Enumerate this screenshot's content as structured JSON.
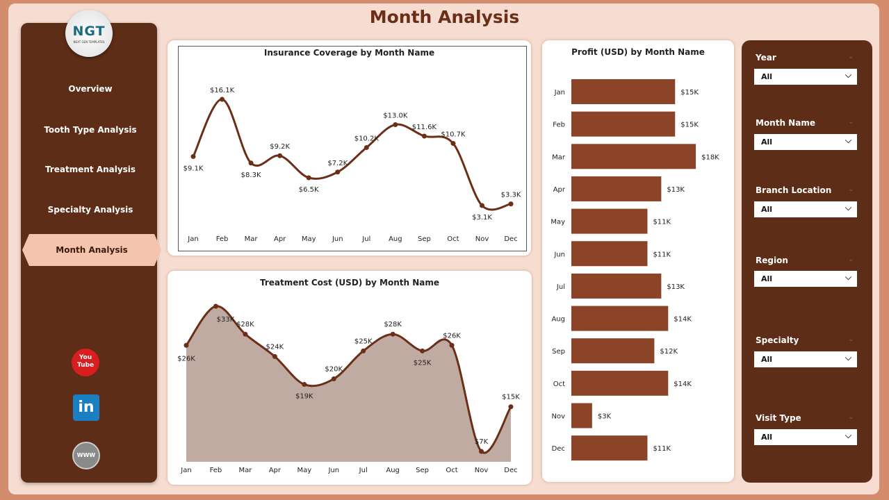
{
  "title": "Month Analysis",
  "logo": {
    "text": "NGT",
    "subtext": "NEXT GEN TEMPLATES"
  },
  "nav": [
    {
      "label": "Overview"
    },
    {
      "label": "Tooth Type Analysis"
    },
    {
      "label": "Treatment Analysis"
    },
    {
      "label": "Specialty Analysis"
    },
    {
      "label": "Month Analysis",
      "active": true
    }
  ],
  "social": [
    {
      "icon": "youtube-icon",
      "label": "You Tube"
    },
    {
      "icon": "linkedin-icon",
      "label": "in"
    },
    {
      "icon": "globe-icon",
      "label": "WWW"
    }
  ],
  "colors": {
    "sidebar": "#5e2d18",
    "bar": "#8b4428",
    "line": "#6b2e16",
    "area": "#c0aba3",
    "accent": "#f4c4ac"
  },
  "slicers": [
    {
      "label": "Year",
      "value": "All"
    },
    {
      "label": "Month Name",
      "value": "All"
    },
    {
      "label": "Branch Location",
      "value": "All"
    },
    {
      "label": "Region",
      "value": "All"
    },
    {
      "label": "Specialty",
      "value": "All"
    },
    {
      "label": "Visit Type",
      "value": "All"
    }
  ],
  "chart_data": [
    {
      "type": "line",
      "title": "Insurance Coverage by Month Name",
      "categories": [
        "Jan",
        "Feb",
        "Mar",
        "Apr",
        "May",
        "Jun",
        "Jul",
        "Aug",
        "Sep",
        "Oct",
        "Nov",
        "Dec"
      ],
      "values": [
        9.1,
        16.1,
        8.3,
        9.2,
        6.5,
        7.2,
        10.2,
        13.0,
        11.6,
        10.7,
        3.1,
        3.3
      ],
      "labels": [
        "$9.1K",
        "$16.1K",
        "$8.3K",
        "$9.2K",
        "$6.5K",
        "$7.2K",
        "$10.2K",
        "$13.0K",
        "$11.6K",
        "$10.7K",
        "$3.1K",
        "$3.3K"
      ],
      "unit": "K USD"
    },
    {
      "type": "area",
      "title": "Treatment Cost (USD) by Month Name",
      "categories": [
        "Jan",
        "Feb",
        "Mar",
        "Apr",
        "May",
        "Jun",
        "Jul",
        "Aug",
        "Sep",
        "Oct",
        "Nov",
        "Dec"
      ],
      "values": [
        26,
        33,
        28,
        24,
        19,
        20,
        25,
        28,
        25,
        26,
        7,
        15
      ],
      "labels": [
        "$26K",
        "$33K",
        "$28K",
        "$24K",
        "$19K",
        "$20K",
        "$25K",
        "$28K",
        "$25K",
        "$26K",
        "$7K",
        "$15K"
      ],
      "unit": "K USD"
    },
    {
      "type": "bar",
      "orientation": "horizontal",
      "title": "Profit (USD) by Month Name",
      "categories": [
        "Jan",
        "Feb",
        "Mar",
        "Apr",
        "May",
        "Jun",
        "Jul",
        "Aug",
        "Sep",
        "Oct",
        "Nov",
        "Dec"
      ],
      "values": [
        15,
        15,
        18,
        13,
        11,
        11,
        13,
        14,
        12,
        14,
        3,
        11
      ],
      "labels": [
        "$15K",
        "$15K",
        "$18K",
        "$13K",
        "$11K",
        "$11K",
        "$13K",
        "$14K",
        "$12K",
        "$14K",
        "$3K",
        "$11K"
      ],
      "unit": "K USD"
    }
  ]
}
